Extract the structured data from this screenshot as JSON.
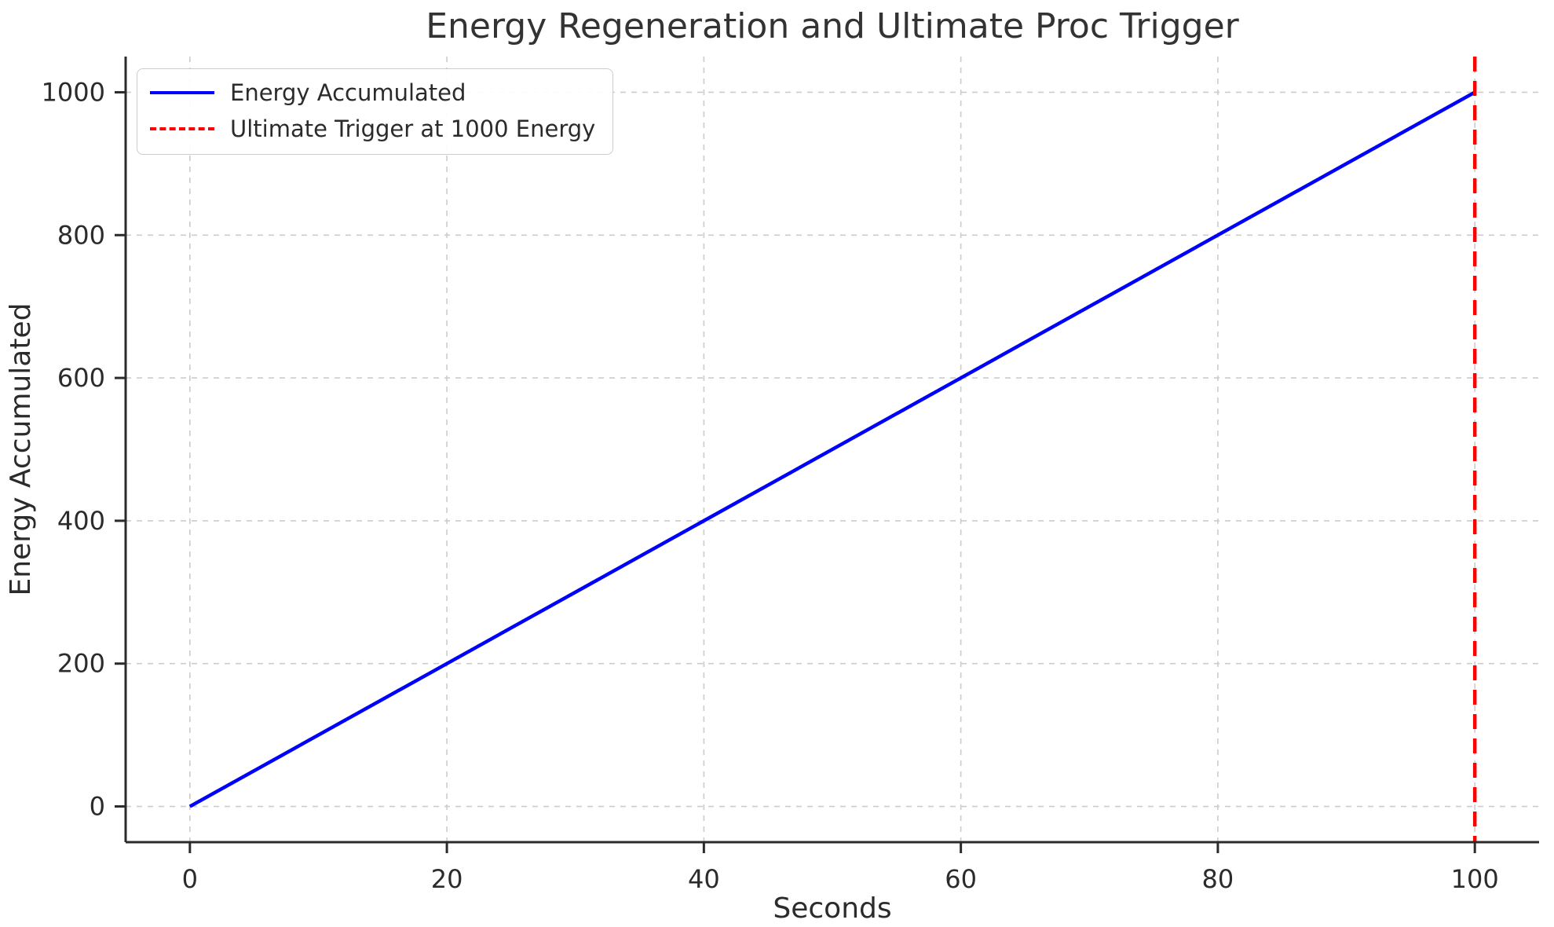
{
  "chart_data": {
    "type": "line",
    "title": "Energy Regeneration and Ultimate Proc Trigger",
    "xlabel": "Seconds",
    "ylabel": "Energy Accumulated",
    "xlim": [
      -5,
      105
    ],
    "ylim": [
      -50,
      1050
    ],
    "xticks": [
      0,
      20,
      40,
      60,
      80,
      100
    ],
    "yticks": [
      0,
      200,
      400,
      600,
      800,
      1000
    ],
    "grid": true,
    "grid_style": "dashed",
    "legend_position": "upper-left",
    "series": [
      {
        "name": "Energy Accumulated",
        "color": "#0000ff",
        "style": "solid",
        "x": [
          0,
          100
        ],
        "y": [
          0,
          1000
        ]
      }
    ],
    "vlines": [
      {
        "name": "Ultimate Trigger at 1000 Energy",
        "x": 100,
        "color": "#ff0000",
        "style": "dashed"
      }
    ],
    "colors": {
      "grid": "#cccccc",
      "spine": "#2b2b2b",
      "text": "#2b2b2b",
      "title": "#333333",
      "background": "#ffffff"
    }
  },
  "legend": {
    "items": [
      {
        "label": "Energy Accumulated",
        "color": "#0000ff",
        "dash": "solid"
      },
      {
        "label": "Ultimate Trigger at 1000 Energy",
        "color": "#ff0000",
        "dash": "dashed"
      }
    ]
  }
}
